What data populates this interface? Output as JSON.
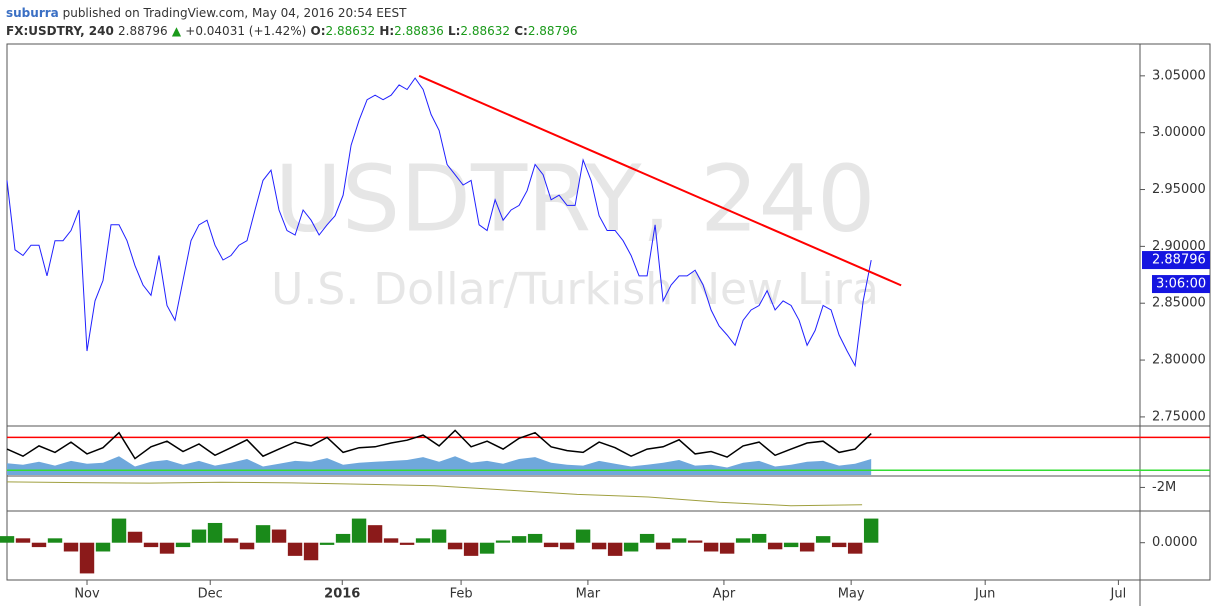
{
  "header": {
    "author": "suburra",
    "published": "published on TradingView.com, May 04, 2016 20:54 EEST",
    "symbol": "FX:USDTRY, 240",
    "last": "2.88796",
    "arrow": "▲",
    "change": "+0.04031 (+1.42%)",
    "ohlc": [
      [
        "O:",
        "2.88632"
      ],
      [
        "H:",
        "2.88836"
      ],
      [
        "L:",
        "2.88632"
      ],
      [
        "C:",
        "2.88796"
      ]
    ]
  },
  "chart_data": [
    {
      "type": "line",
      "watermark": [
        "USDTRY, 240",
        "U.S. Dollar/Turkish New Lira"
      ],
      "color": "#2020ff",
      "values": [
        2.958,
        2.897,
        2.892,
        2.901,
        2.901,
        2.874,
        2.905,
        2.905,
        2.914,
        2.932,
        2.808,
        2.852,
        2.87,
        2.919,
        2.919,
        2.905,
        2.883,
        2.866,
        2.857,
        2.892,
        2.848,
        2.835,
        2.87,
        2.905,
        2.919,
        2.923,
        2.901,
        2.888,
        2.892,
        2.901,
        2.905,
        2.932,
        2.958,
        2.967,
        2.932,
        2.914,
        2.91,
        2.932,
        2.923,
        2.91,
        2.919,
        2.927,
        2.945,
        2.989,
        3.011,
        3.029,
        3.033,
        3.029,
        3.033,
        3.042,
        3.038,
        3.048,
        3.038,
        3.016,
        3.002,
        2.972,
        2.963,
        2.954,
        2.958,
        2.919,
        2.914,
        2.941,
        2.923,
        2.932,
        2.936,
        2.949,
        2.972,
        2.963,
        2.941,
        2.945,
        2.936,
        2.936,
        2.976,
        2.958,
        2.927,
        2.914,
        2.914,
        2.905,
        2.892,
        2.874,
        2.874,
        2.919,
        2.852,
        2.866,
        2.874,
        2.874,
        2.879,
        2.866,
        2.844,
        2.83,
        2.822,
        2.813,
        2.835,
        2.844,
        2.848,
        2.861,
        2.844,
        2.852,
        2.848,
        2.835,
        2.813,
        2.826,
        2.848,
        2.844,
        2.822,
        2.808,
        2.795,
        2.852,
        2.88796
      ],
      "xlim": [
        0,
        141.6
      ],
      "xticks": [
        {
          "value": 10,
          "label": "Nov"
        },
        {
          "value": 25.4,
          "label": "Dec"
        },
        {
          "value": 41.9,
          "label": "2016"
        },
        {
          "value": 56.75,
          "label": "Feb"
        },
        {
          "value": 72.6,
          "label": "Mar"
        },
        {
          "value": 89.6,
          "label": "Apr"
        },
        {
          "value": 105.5,
          "label": "May"
        },
        {
          "value": 122.25,
          "label": "Jun"
        },
        {
          "value": 138.9,
          "label": "Jul"
        }
      ],
      "ylim": [
        2.742,
        3.078
      ],
      "yticks": [
        {
          "value": 2.75,
          "label": "2.75000"
        },
        {
          "value": 2.8,
          "label": "2.80000"
        },
        {
          "value": 2.85,
          "label": "2.85000"
        },
        {
          "value": 2.9,
          "label": "2.90000"
        },
        {
          "value": 2.95,
          "label": "2.95000"
        },
        {
          "value": 3.0,
          "label": "3.00000"
        },
        {
          "value": 3.05,
          "label": "3.05000"
        }
      ],
      "trendline": {
        "x": [
          51.5,
          111.75
        ],
        "y": [
          3.05,
          2.8657
        ],
        "color": "#ff0000"
      },
      "price_label": {
        "value": 2.88796,
        "label": "2.88796"
      },
      "countdown": "3:06:00"
    },
    {
      "type": "oscillator",
      "xlim": [
        0,
        70.8
      ],
      "ylim": [
        0,
        100
      ],
      "color": "#000000",
      "area_color": "#6fa8dc",
      "values": [
        55,
        40,
        62,
        48,
        70,
        45,
        58,
        90,
        35,
        60,
        72,
        50,
        66,
        42,
        58,
        75,
        40,
        55,
        70,
        62,
        80,
        48,
        58,
        60,
        68,
        74,
        85,
        62,
        95,
        60,
        72,
        55,
        78,
        90,
        60,
        52,
        48,
        70,
        58,
        40,
        55,
        60,
        75,
        45,
        50,
        38,
        62,
        70,
        42,
        55,
        68,
        72,
        48,
        55,
        88
      ],
      "area": [
        25,
        22,
        28,
        20,
        30,
        24,
        26,
        40,
        18,
        28,
        32,
        22,
        30,
        20,
        26,
        34,
        18,
        24,
        30,
        28,
        36,
        22,
        26,
        28,
        30,
        32,
        38,
        28,
        40,
        26,
        30,
        24,
        34,
        38,
        26,
        22,
        20,
        30,
        24,
        18,
        22,
        26,
        32,
        20,
        22,
        16,
        26,
        30,
        18,
        22,
        28,
        30,
        20,
        24,
        34
      ],
      "levels": [
        {
          "value": 80,
          "color": "#ff0000"
        },
        {
          "value": 10,
          "color": "#33dd33"
        }
      ]
    },
    {
      "type": "line",
      "xlim": [
        0,
        15.9
      ],
      "ylim": [
        -3300000,
        -1400000
      ],
      "color": "#a0a040",
      "values": [
        -1680000,
        -1720000,
        -1750000,
        -1700000,
        -1740000,
        -1820000,
        -1900000,
        -2150000,
        -2400000,
        -2550000,
        -2850000,
        -3050000,
        -3000000
      ],
      "yticks": [
        {
          "value": -2000000,
          "label": "-2M"
        }
      ]
    },
    {
      "type": "histogram",
      "xlim": [
        0,
        70.8
      ],
      "ylim": [
        -0.017,
        0.014
      ],
      "up_color": "#1a8a1a",
      "down_color": "#8b1a1a",
      "values": [
        0.003,
        0.002,
        -0.002,
        0.002,
        -0.004,
        -0.014,
        -0.004,
        0.011,
        0.005,
        -0.002,
        -0.005,
        -0.002,
        0.006,
        0.009,
        0.002,
        -0.003,
        0.008,
        0.006,
        -0.006,
        -0.008,
        -0.001,
        0.004,
        0.011,
        0.008,
        0.002,
        -0.001,
        0.002,
        0.006,
        -0.003,
        -0.006,
        -0.005,
        0.001,
        0.003,
        0.004,
        -0.002,
        -0.003,
        0.006,
        -0.003,
        -0.006,
        -0.004,
        0.004,
        -0.003,
        0.002,
        0.001,
        -0.004,
        -0.005,
        0.002,
        0.004,
        -0.003,
        -0.002,
        -0.004,
        0.003,
        -0.002,
        -0.005,
        0.011
      ],
      "yticks": [
        {
          "value": 0,
          "label": "0.0000"
        }
      ]
    }
  ]
}
